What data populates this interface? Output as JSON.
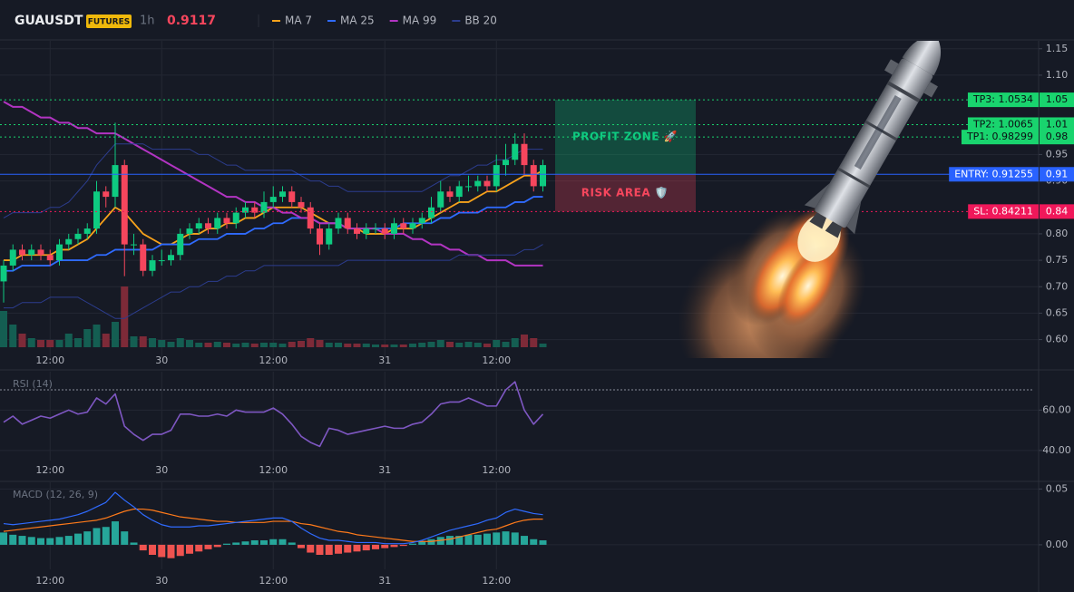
{
  "chart_data": [
    {
      "type": "candlestick",
      "title": "GUAUSDT",
      "badge": "FUTURES",
      "interval": "1h",
      "last_price": 0.9117,
      "categories": [
        null,
        null,
        null,
        null,
        null,
        "12:00",
        null,
        null,
        null,
        null,
        null,
        null,
        null,
        null,
        null,
        null,
        null,
        "30",
        null,
        null,
        null,
        null,
        null,
        null,
        null,
        null,
        null,
        null,
        null,
        "12:00",
        null,
        null,
        null,
        null,
        null,
        null,
        null,
        null,
        null,
        null,
        null,
        "31",
        null,
        null,
        null,
        null,
        null,
        null,
        null,
        null,
        null,
        null,
        null,
        "12:00",
        null,
        null,
        null,
        null,
        null
      ],
      "open": [
        0.71,
        0.74,
        0.77,
        0.76,
        0.77,
        0.76,
        0.75,
        0.78,
        0.79,
        0.8,
        0.81,
        0.88,
        0.87,
        0.93,
        0.78,
        0.78,
        0.73,
        0.75,
        0.75,
        0.76,
        0.8,
        0.81,
        0.82,
        0.81,
        0.83,
        0.82,
        0.84,
        0.85,
        0.84,
        0.86,
        0.87,
        0.88,
        0.86,
        0.85,
        0.81,
        0.78,
        0.81,
        0.83,
        0.81,
        0.8,
        0.81,
        0.81,
        0.8,
        0.82,
        0.81,
        0.82,
        0.83,
        0.85,
        0.88,
        0.87,
        0.89,
        0.89,
        0.9,
        0.89,
        0.93,
        0.94,
        0.97,
        0.93,
        0.89
      ],
      "high": [
        0.75,
        0.78,
        0.78,
        0.78,
        0.78,
        0.77,
        0.79,
        0.8,
        0.81,
        0.82,
        0.9,
        0.89,
        1.01,
        0.94,
        0.8,
        0.79,
        0.76,
        0.77,
        0.77,
        0.81,
        0.82,
        0.83,
        0.83,
        0.84,
        0.84,
        0.85,
        0.86,
        0.86,
        0.88,
        0.89,
        0.89,
        0.89,
        0.87,
        0.86,
        0.82,
        0.82,
        0.84,
        0.84,
        0.82,
        0.82,
        0.82,
        0.82,
        0.83,
        0.83,
        0.83,
        0.84,
        0.87,
        0.9,
        0.89,
        0.9,
        0.91,
        0.91,
        0.91,
        0.95,
        0.97,
        0.99,
        0.99,
        0.94,
        0.94
      ],
      "low": [
        0.67,
        0.73,
        0.75,
        0.75,
        0.75,
        0.74,
        0.74,
        0.77,
        0.78,
        0.79,
        0.8,
        0.85,
        0.85,
        0.72,
        0.76,
        0.72,
        0.72,
        0.74,
        0.74,
        0.75,
        0.79,
        0.8,
        0.8,
        0.8,
        0.81,
        0.81,
        0.83,
        0.83,
        0.83,
        0.85,
        0.86,
        0.85,
        0.84,
        0.8,
        0.76,
        0.77,
        0.8,
        0.8,
        0.79,
        0.79,
        0.8,
        0.79,
        0.79,
        0.8,
        0.8,
        0.81,
        0.82,
        0.84,
        0.86,
        0.86,
        0.88,
        0.88,
        0.88,
        0.88,
        0.91,
        0.93,
        0.91,
        0.88,
        0.88
      ],
      "close": [
        0.74,
        0.77,
        0.76,
        0.77,
        0.76,
        0.75,
        0.78,
        0.79,
        0.8,
        0.81,
        0.88,
        0.87,
        0.93,
        0.78,
        0.78,
        0.73,
        0.75,
        0.75,
        0.76,
        0.8,
        0.81,
        0.82,
        0.81,
        0.83,
        0.82,
        0.84,
        0.85,
        0.84,
        0.86,
        0.87,
        0.88,
        0.86,
        0.85,
        0.81,
        0.78,
        0.81,
        0.83,
        0.81,
        0.8,
        0.81,
        0.81,
        0.8,
        0.82,
        0.81,
        0.82,
        0.83,
        0.85,
        0.88,
        0.87,
        0.89,
        0.89,
        0.9,
        0.89,
        0.93,
        0.94,
        0.97,
        0.93,
        0.89,
        0.93
      ],
      "volume": [
        40,
        25,
        15,
        10,
        8,
        8,
        8,
        15,
        10,
        20,
        25,
        15,
        28,
        67,
        12,
        12,
        10,
        8,
        6,
        10,
        8,
        5,
        5,
        6,
        5,
        4,
        5,
        4,
        5,
        5,
        4,
        6,
        7,
        10,
        8,
        5,
        5,
        4,
        4,
        4,
        3,
        3,
        3,
        3,
        4,
        5,
        6,
        8,
        6,
        5,
        6,
        5,
        4,
        8,
        6,
        10,
        14,
        10,
        4
      ],
      "up_color": "#0ecb81",
      "down_color": "#f6465d",
      "volume_up_color": "#145e52",
      "volume_down_color": "#7d2a38",
      "overlays": [
        {
          "name": "MA 7",
          "color": "#f7a21b",
          "values": [
            0.75,
            0.75,
            0.76,
            0.76,
            0.76,
            0.76,
            0.77,
            0.77,
            0.78,
            0.79,
            0.81,
            0.83,
            0.85,
            0.84,
            0.82,
            0.8,
            0.79,
            0.78,
            0.78,
            0.79,
            0.8,
            0.8,
            0.81,
            0.81,
            0.82,
            0.82,
            0.83,
            0.83,
            0.84,
            0.85,
            0.85,
            0.85,
            0.85,
            0.84,
            0.83,
            0.82,
            0.82,
            0.81,
            0.81,
            0.8,
            0.8,
            0.8,
            0.81,
            0.81,
            0.81,
            0.82,
            0.83,
            0.84,
            0.85,
            0.86,
            0.86,
            0.87,
            0.88,
            0.88,
            0.89,
            0.9,
            0.91,
            0.91,
            0.92
          ]
        },
        {
          "name": "MA 25",
          "color": "#2f6bff",
          "values": [
            0.73,
            0.73,
            0.74,
            0.74,
            0.74,
            0.74,
            0.75,
            0.75,
            0.75,
            0.75,
            0.76,
            0.76,
            0.77,
            0.77,
            0.77,
            0.77,
            0.77,
            0.78,
            0.78,
            0.78,
            0.78,
            0.79,
            0.79,
            0.79,
            0.8,
            0.8,
            0.8,
            0.81,
            0.81,
            0.82,
            0.82,
            0.83,
            0.83,
            0.83,
            0.82,
            0.82,
            0.82,
            0.81,
            0.81,
            0.81,
            0.81,
            0.81,
            0.81,
            0.82,
            0.82,
            0.82,
            0.82,
            0.83,
            0.83,
            0.84,
            0.84,
            0.84,
            0.85,
            0.85,
            0.85,
            0.86,
            0.86,
            0.87,
            0.87
          ]
        },
        {
          "name": "MA 99",
          "color": "#b234c2",
          "values": [
            1.05,
            1.04,
            1.04,
            1.03,
            1.02,
            1.02,
            1.01,
            1.01,
            1.0,
            1.0,
            0.99,
            0.99,
            0.99,
            0.98,
            0.97,
            0.96,
            0.95,
            0.94,
            0.93,
            0.92,
            0.91,
            0.9,
            0.89,
            0.88,
            0.87,
            0.87,
            0.86,
            0.86,
            0.85,
            0.85,
            0.84,
            0.84,
            0.83,
            0.83,
            0.82,
            0.82,
            0.82,
            0.81,
            0.81,
            0.81,
            0.81,
            0.8,
            0.8,
            0.8,
            0.79,
            0.79,
            0.78,
            0.78,
            0.77,
            0.77,
            0.76,
            0.76,
            0.75,
            0.75,
            0.75,
            0.74,
            0.74,
            0.74,
            0.74
          ]
        },
        {
          "name": "BB 20",
          "color": "#2c3d8f",
          "upper": [
            0.83,
            0.84,
            0.84,
            0.84,
            0.84,
            0.85,
            0.85,
            0.86,
            0.88,
            0.9,
            0.93,
            0.95,
            0.97,
            0.97,
            0.97,
            0.97,
            0.96,
            0.96,
            0.96,
            0.96,
            0.96,
            0.95,
            0.95,
            0.94,
            0.93,
            0.93,
            0.92,
            0.92,
            0.92,
            0.92,
            0.92,
            0.92,
            0.91,
            0.9,
            0.9,
            0.89,
            0.89,
            0.88,
            0.88,
            0.88,
            0.88,
            0.88,
            0.88,
            0.88,
            0.88,
            0.88,
            0.89,
            0.9,
            0.91,
            0.91,
            0.92,
            0.93,
            0.93,
            0.94,
            0.94,
            0.95,
            0.96,
            0.96,
            0.96
          ],
          "lower": [
            0.66,
            0.66,
            0.67,
            0.67,
            0.67,
            0.68,
            0.68,
            0.68,
            0.68,
            0.67,
            0.66,
            0.65,
            0.64,
            0.64,
            0.65,
            0.66,
            0.67,
            0.68,
            0.69,
            0.69,
            0.7,
            0.7,
            0.71,
            0.71,
            0.72,
            0.72,
            0.73,
            0.73,
            0.74,
            0.74,
            0.74,
            0.74,
            0.74,
            0.74,
            0.74,
            0.74,
            0.74,
            0.75,
            0.75,
            0.75,
            0.75,
            0.75,
            0.75,
            0.75,
            0.75,
            0.75,
            0.75,
            0.75,
            0.75,
            0.76,
            0.76,
            0.76,
            0.76,
            0.76,
            0.76,
            0.76,
            0.77,
            0.77,
            0.78
          ]
        }
      ],
      "ylim": [
        0.565,
        1.165
      ],
      "yticks": [
        {
          "value": 1.15,
          "label": "1.15"
        },
        {
          "value": 1.1,
          "label": "1.10"
        },
        {
          "value": 0.95,
          "label": "0.95"
        },
        {
          "value": 0.9,
          "label": "0.90"
        },
        {
          "value": 0.8,
          "label": "0.80"
        },
        {
          "value": 0.75,
          "label": "0.75"
        },
        {
          "value": 0.7,
          "label": "0.70"
        },
        {
          "value": 0.65,
          "label": "0.65"
        },
        {
          "value": 0.6,
          "label": "0.60"
        }
      ],
      "grid": true,
      "levels": [
        {
          "text": "TP3: 1.0534",
          "value": 1.0534,
          "axis_label": "1.05",
          "color": "#19d46e",
          "text_color": "#0b0e14",
          "line_style": "dotted"
        },
        {
          "text": "TP2: 1.0065",
          "value": 1.0065,
          "axis_label": "1.01",
          "color": "#19d46e",
          "text_color": "#0b0e14",
          "line_style": "dotted"
        },
        {
          "text": "TP1: 0.98299",
          "value": 0.98299,
          "axis_label": "0.98",
          "color": "#19d46e",
          "text_color": "#0b0e14",
          "line_style": "dotted"
        },
        {
          "text": "ENTRY: 0.91255",
          "value": 0.91255,
          "axis_label": "0.91",
          "color": "#2962ff",
          "text_color": "#ffffff",
          "line_style": "solid"
        },
        {
          "text": "SL: 0.84211",
          "value": 0.84211,
          "axis_label": "0.84",
          "color": "#f0185a",
          "text_color": "#ffffff",
          "line_style": "dotted"
        }
      ],
      "zones": [
        {
          "text": "PROFIT ZONE 🚀",
          "from": 0.91255,
          "to": 1.0534,
          "color": "#0ecb81"
        },
        {
          "text": "RISK AREA 🛡️",
          "from": 0.84211,
          "to": 0.91255,
          "color": "#f6465d"
        }
      ]
    },
    {
      "type": "line",
      "title": "RSI (14)",
      "categories": [
        null,
        null,
        null,
        null,
        null,
        "12:00",
        null,
        null,
        null,
        null,
        null,
        null,
        null,
        null,
        null,
        null,
        null,
        "30",
        null,
        null,
        null,
        null,
        null,
        null,
        null,
        null,
        null,
        null,
        null,
        "12:00",
        null,
        null,
        null,
        null,
        null,
        null,
        null,
        null,
        null,
        null,
        null,
        "31",
        null,
        null,
        null,
        null,
        null,
        null,
        null,
        null,
        null,
        null,
        null,
        "12:00",
        null,
        null,
        null,
        null,
        null
      ],
      "values": [
        54,
        57,
        53,
        55,
        57,
        56,
        58,
        60,
        58,
        59,
        66,
        63,
        68,
        52,
        48,
        45,
        48,
        48,
        50,
        58,
        58,
        57,
        57,
        58,
        57,
        60,
        59,
        59,
        59,
        61,
        58,
        53,
        47,
        44,
        42,
        51,
        50,
        48,
        49,
        50,
        51,
        52,
        51,
        51,
        53,
        54,
        58,
        63,
        64,
        64,
        66,
        64,
        62,
        62,
        70,
        74,
        60,
        53,
        58
      ],
      "color": "#7e57c2",
      "reference_line": 70,
      "ylim": [
        35,
        79
      ],
      "yticks": [
        {
          "value": 60,
          "label": "60.00"
        },
        {
          "value": 40,
          "label": "40.00"
        }
      ],
      "grid": true
    },
    {
      "type": "macd",
      "title": "MACD (12, 26, 9)",
      "categories": [
        null,
        null,
        null,
        null,
        null,
        "12:00",
        null,
        null,
        null,
        null,
        null,
        null,
        null,
        null,
        null,
        null,
        null,
        "30",
        null,
        null,
        null,
        null,
        null,
        null,
        null,
        null,
        null,
        null,
        null,
        "12:00",
        null,
        null,
        null,
        null,
        null,
        null,
        null,
        null,
        null,
        null,
        null,
        "31",
        null,
        null,
        null,
        null,
        null,
        null,
        null,
        null,
        null,
        null,
        null,
        "12:00",
        null,
        null,
        null,
        null,
        null
      ],
      "macd": {
        "color": "#2f6bff",
        "values": [
          0.019,
          0.018,
          0.019,
          0.02,
          0.021,
          0.022,
          0.023,
          0.025,
          0.027,
          0.03,
          0.034,
          0.038,
          0.047,
          0.04,
          0.034,
          0.027,
          0.022,
          0.018,
          0.016,
          0.016,
          0.016,
          0.017,
          0.017,
          0.018,
          0.019,
          0.02,
          0.021,
          0.022,
          0.023,
          0.024,
          0.024,
          0.021,
          0.015,
          0.01,
          0.006,
          0.004,
          0.004,
          0.003,
          0.002,
          0.002,
          0.002,
          0.001,
          0.001,
          0.001,
          0.002,
          0.004,
          0.007,
          0.01,
          0.013,
          0.015,
          0.017,
          0.019,
          0.022,
          0.024,
          0.029,
          0.032,
          0.03,
          0.028,
          0.027
        ]
      },
      "signal": {
        "color": "#ff7a1a",
        "values": [
          0.012,
          0.013,
          0.014,
          0.015,
          0.016,
          0.017,
          0.018,
          0.019,
          0.02,
          0.021,
          0.022,
          0.024,
          0.027,
          0.03,
          0.032,
          0.032,
          0.031,
          0.029,
          0.027,
          0.025,
          0.024,
          0.023,
          0.022,
          0.021,
          0.021,
          0.02,
          0.02,
          0.02,
          0.02,
          0.021,
          0.021,
          0.021,
          0.019,
          0.018,
          0.016,
          0.014,
          0.012,
          0.011,
          0.009,
          0.008,
          0.007,
          0.006,
          0.005,
          0.004,
          0.003,
          0.003,
          0.003,
          0.004,
          0.005,
          0.007,
          0.009,
          0.011,
          0.013,
          0.014,
          0.017,
          0.02,
          0.022,
          0.023,
          0.023
        ]
      },
      "histogram": {
        "positive_color": "#26a69a",
        "negative_color": "#ef5350",
        "values": [
          0.011,
          0.009,
          0.008,
          0.007,
          0.006,
          0.006,
          0.007,
          0.008,
          0.01,
          0.012,
          0.015,
          0.016,
          0.021,
          0.012,
          0.002,
          -0.005,
          -0.009,
          -0.011,
          -0.012,
          -0.01,
          -0.008,
          -0.006,
          -0.004,
          -0.002,
          0.001,
          0.002,
          0.003,
          0.004,
          0.004,
          0.005,
          0.005,
          0.002,
          -0.003,
          -0.007,
          -0.009,
          -0.009,
          -0.008,
          -0.007,
          -0.006,
          -0.005,
          -0.004,
          -0.003,
          -0.002,
          -0.001,
          0.001,
          0.003,
          0.005,
          0.007,
          0.008,
          0.008,
          0.009,
          0.009,
          0.01,
          0.011,
          0.012,
          0.011,
          0.008,
          0.005,
          0.004
        ]
      },
      "ylim": [
        -0.022,
        0.056
      ],
      "yticks": [
        {
          "value": 0.05,
          "label": "0.05"
        },
        {
          "value": 0,
          "label": "0.00"
        }
      ],
      "grid": true
    }
  ]
}
